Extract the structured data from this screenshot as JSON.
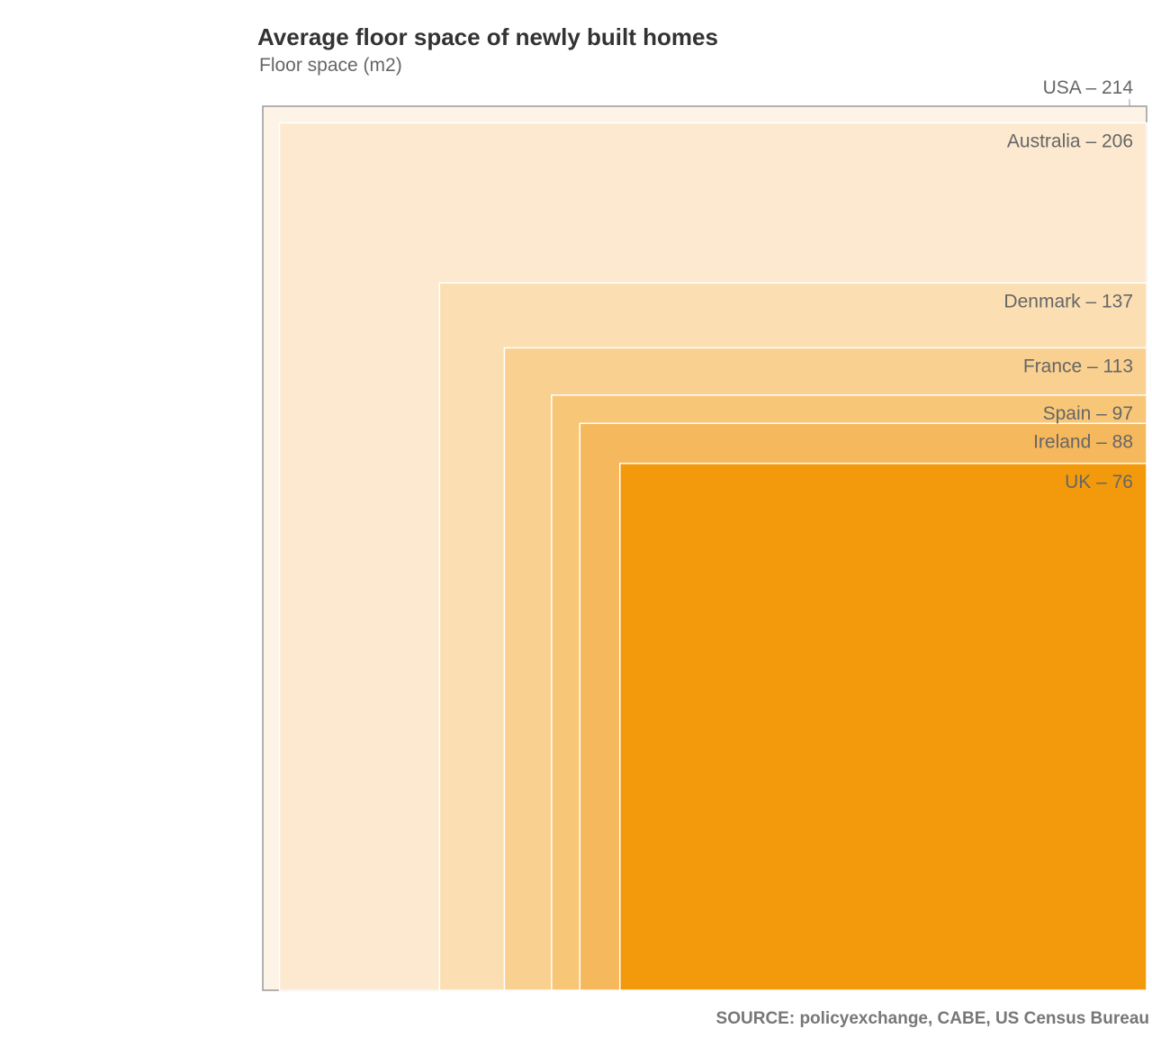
{
  "chart_data": {
    "type": "nested-squares",
    "title": "Average floor space of newly built homes",
    "subtitle": "Floor space (m2)",
    "source": "SOURCE: policyexchange, CABE, US Census Bureau",
    "unit": "m2",
    "label_separator": " – ",
    "items": [
      {
        "country": "USA",
        "value": 214,
        "color": "#fdf3e6"
      },
      {
        "country": "Australia",
        "value": 206,
        "color": "#fce9cf"
      },
      {
        "country": "Denmark",
        "value": 137,
        "color": "#fbdfb3"
      },
      {
        "country": "France",
        "value": 113,
        "color": "#f9d08f"
      },
      {
        "country": "Spain",
        "value": 97,
        "color": "#f8c677"
      },
      {
        "country": "Ireland",
        "value": 88,
        "color": "#f6b85c"
      },
      {
        "country": "UK",
        "value": 76,
        "color": "#f29a0c"
      }
    ]
  }
}
